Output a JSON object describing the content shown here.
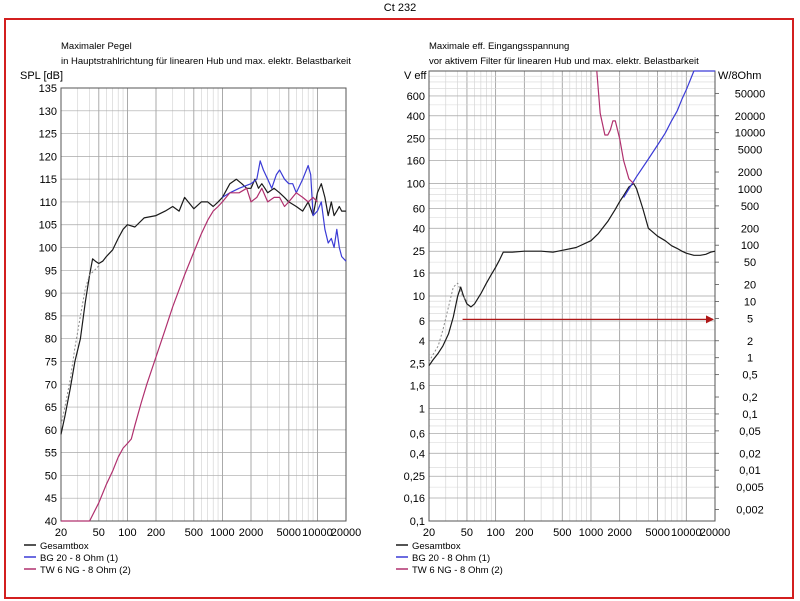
{
  "page_title": "Ct 232",
  "colors": {
    "frame": "#d31f1f",
    "gesamtbox": "#1a1a1a",
    "bg20": "#3b3bd6",
    "tw6": "#b0306e",
    "dashed": "#8a8a8a",
    "arrow": "#b01818",
    "grid": "#b4b4b4"
  },
  "chart_data": [
    {
      "type": "line",
      "title": "Maximaler Pegel",
      "subtitle": "in Hauptstrahlrichtung für linearen Hub und max. elektr. Belastbarkeit",
      "ylabel": "SPL [dB]",
      "x_scale": "log",
      "xlim": [
        20,
        20000
      ],
      "ylim": [
        40,
        135
      ],
      "x_ticks": [
        20,
        50,
        100,
        200,
        500,
        1000,
        2000,
        5000,
        10000,
        20000
      ],
      "x_tick_labels": [
        "20",
        "50",
        "100",
        "200",
        "500",
        "1000",
        "2000",
        "5000",
        "10000",
        "20000"
      ],
      "y_ticks": [
        40,
        45,
        50,
        55,
        60,
        65,
        70,
        75,
        80,
        85,
        90,
        95,
        100,
        105,
        110,
        115,
        120,
        125,
        130,
        135
      ],
      "y_tick_labels": [
        "40",
        "45",
        "50",
        "55",
        "60",
        "65",
        "70",
        "75",
        "80",
        "85",
        "90",
        "95",
        "100",
        "105",
        "110",
        "115",
        "120",
        "125",
        "130",
        "135"
      ],
      "legend_position": "bottom",
      "series": [
        {
          "name": "Gesamtbox",
          "color": "#1a1a1a",
          "x": [
            20,
            22,
            25,
            28,
            32,
            36,
            40,
            43,
            46,
            50,
            55,
            60,
            70,
            80,
            90,
            100,
            120,
            150,
            200,
            250,
            300,
            350,
            400,
            500,
            600,
            700,
            800,
            900,
            1000,
            1200,
            1400,
            1600,
            1800,
            2000,
            2200,
            2400,
            2600,
            2800,
            3000,
            3500,
            4000,
            4500,
            5000,
            6000,
            7000,
            8000,
            9000,
            10000,
            11000,
            12000,
            13000,
            14000,
            15000,
            16000,
            17000,
            18000,
            20000
          ],
          "y": [
            59,
            63,
            69,
            75,
            80,
            88,
            94,
            97.5,
            97,
            96.5,
            97,
            98,
            99.5,
            102,
            104,
            105,
            104.5,
            106.5,
            107,
            108,
            109,
            108,
            111,
            108.5,
            110,
            110,
            109,
            110,
            111,
            114,
            115,
            114,
            113,
            113,
            115,
            113,
            114,
            113,
            112,
            113,
            112,
            111,
            110,
            109,
            108,
            110,
            107,
            112,
            114,
            111,
            107,
            110,
            107,
            108,
            109,
            108,
            108
          ]
        },
        {
          "name": "BG 20 - 8 Ohm      (1)",
          "color": "#3b3bd6",
          "x": [
            1000,
            1200,
            1500,
            2000,
            2300,
            2500,
            2700,
            3000,
            3300,
            3700,
            4000,
            4500,
            5000,
            5500,
            6000,
            7000,
            8000,
            8500,
            9000,
            10000,
            11000,
            12000,
            13000,
            14000,
            15000,
            16000,
            17000,
            18000,
            20000
          ],
          "y": [
            111,
            112,
            113,
            114,
            115,
            119,
            117,
            115,
            113,
            116,
            117,
            115,
            114,
            114,
            112,
            115,
            118,
            116,
            107,
            108,
            110,
            104,
            101,
            102,
            100,
            104,
            100,
            98,
            97
          ]
        },
        {
          "name": "TW 6 NG - 8 Ohm (2)",
          "color": "#b0306e",
          "x": [
            20,
            30,
            40,
            50,
            60,
            70,
            80,
            90,
            100,
            110,
            120,
            140,
            160,
            200,
            250,
            300,
            400,
            500,
            600,
            700,
            800,
            900,
            1000,
            1200,
            1500,
            1800,
            2000,
            2300,
            2600,
            3000,
            3500,
            4000,
            4500,
            5000,
            6000,
            7000,
            8000,
            9000,
            10000
          ],
          "y": [
            40,
            40,
            40,
            44,
            48,
            51,
            54,
            56,
            57,
            58,
            61,
            66,
            70,
            76,
            82,
            87,
            94,
            99,
            103,
            106,
            108,
            109,
            110,
            112,
            112,
            113,
            110,
            111,
            113,
            110,
            111,
            111,
            109,
            110,
            112,
            111,
            110,
            111,
            110
          ]
        },
        {
          "name": "",
          "color": "#8a8a8a",
          "dashed": true,
          "x": [
            20,
            22,
            25,
            28,
            32,
            36,
            40,
            45,
            50
          ],
          "y": [
            61,
            65,
            71,
            78,
            85,
            91,
            94,
            95,
            96
          ]
        }
      ]
    },
    {
      "type": "line",
      "title": "Maximale eff. Eingangsspannung",
      "subtitle": "vor aktivem Filter für linearen Hub und max. elektr. Belastbarkeit",
      "ylabel": "V eff",
      "y2label": "W/8Ohm",
      "x_scale": "log",
      "y_scale": "log",
      "xlim": [
        20,
        20000
      ],
      "ylim": [
        0.1,
        1000
      ],
      "y2lim": [
        0.00125,
        125000
      ],
      "x_ticks": [
        20,
        50,
        100,
        200,
        500,
        1000,
        2000,
        5000,
        10000,
        20000
      ],
      "x_tick_labels": [
        "20",
        "50",
        "100",
        "200",
        "500",
        "1000",
        "2000",
        "5000",
        "10000",
        "20000"
      ],
      "y_ticks": [
        0.1,
        0.16,
        0.25,
        0.4,
        0.6,
        1,
        1.6,
        2.5,
        4,
        6,
        10,
        16,
        25,
        40,
        60,
        100,
        160,
        250,
        400,
        600
      ],
      "y_tick_labels": [
        "0,1",
        "0,16",
        "0,25",
        "0,4",
        "0,6",
        "1",
        "1,6",
        "2,5",
        "4",
        "6",
        "10",
        "16",
        "25",
        "40",
        "60",
        "100",
        "160",
        "250",
        "400",
        "600"
      ],
      "y2_ticks": [
        0.002,
        0.005,
        0.01,
        0.02,
        0.05,
        0.1,
        0.2,
        0.5,
        1,
        2,
        5,
        10,
        20,
        50,
        100,
        200,
        500,
        1000,
        2000,
        5000,
        10000,
        20000,
        50000
      ],
      "y2_tick_labels": [
        "0,002",
        "0,005",
        "0,01",
        "0,02",
        "0,05",
        "0,1",
        "0,2",
        "0,5",
        "1",
        "2",
        "5",
        "10",
        "20",
        "50",
        "100",
        "200",
        "500",
        "1000",
        "2000",
        "5000",
        "10000",
        "20000",
        "50000"
      ],
      "legend_position": "bottom",
      "series": [
        {
          "name": "Gesamtbox",
          "color": "#1a1a1a",
          "x": [
            20,
            22,
            25,
            28,
            32,
            36,
            40,
            43,
            46,
            50,
            55,
            60,
            70,
            80,
            90,
            100,
            110,
            120,
            150,
            200,
            300,
            400,
            500,
            700,
            1000,
            1200,
            1500,
            1800,
            2000,
            2200,
            2500,
            2800,
            3000,
            3500,
            4000,
            5000,
            6000,
            7000,
            8000,
            9000,
            10000,
            12000,
            14000,
            16000,
            18000,
            20000
          ],
          "y": [
            2.4,
            2.7,
            3.1,
            3.6,
            4.6,
            6.5,
            10,
            12,
            10,
            8.5,
            8,
            8.5,
            10.5,
            13,
            15.5,
            18,
            21,
            24.5,
            24.5,
            25,
            25,
            24.5,
            25.5,
            27,
            31,
            36,
            46,
            59,
            69,
            78,
            93,
            100,
            90,
            60,
            40,
            34,
            31,
            28,
            26.5,
            25,
            24,
            23,
            23,
            23.5,
            24.5,
            25
          ]
        },
        {
          "name": "BG 20 - 8 Ohm      (1)",
          "color": "#3b3bd6",
          "x": [
            2200,
            3000,
            4000,
            5000,
            6000,
            7000,
            8000,
            9000,
            10000,
            12000,
            14000,
            20000
          ],
          "y": [
            75,
            115,
            165,
            220,
            280,
            360,
            440,
            560,
            680,
            1000,
            1000,
            1000
          ]
        },
        {
          "name": "TW 6 NG - 8 Ohm (2)",
          "color": "#b0306e",
          "x": [
            1150,
            1250,
            1400,
            1500,
            1600,
            1700,
            1800,
            2000,
            2200,
            2500,
            2800
          ],
          "y": [
            1000,
            420,
            270,
            270,
            300,
            360,
            360,
            250,
            160,
            110,
            100
          ]
        },
        {
          "name": "",
          "color": "#8a8a8a",
          "dashed": true,
          "x": [
            20,
            22,
            25,
            28,
            32,
            36,
            40,
            45,
            50
          ],
          "y": [
            2.6,
            3,
            3.6,
            5,
            8,
            12,
            13,
            10,
            9
          ]
        }
      ],
      "annotations": [
        {
          "type": "arrow",
          "color": "#b01818",
          "from": [
            45,
            6.2
          ],
          "to": [
            20000,
            6.2
          ]
        }
      ]
    }
  ]
}
